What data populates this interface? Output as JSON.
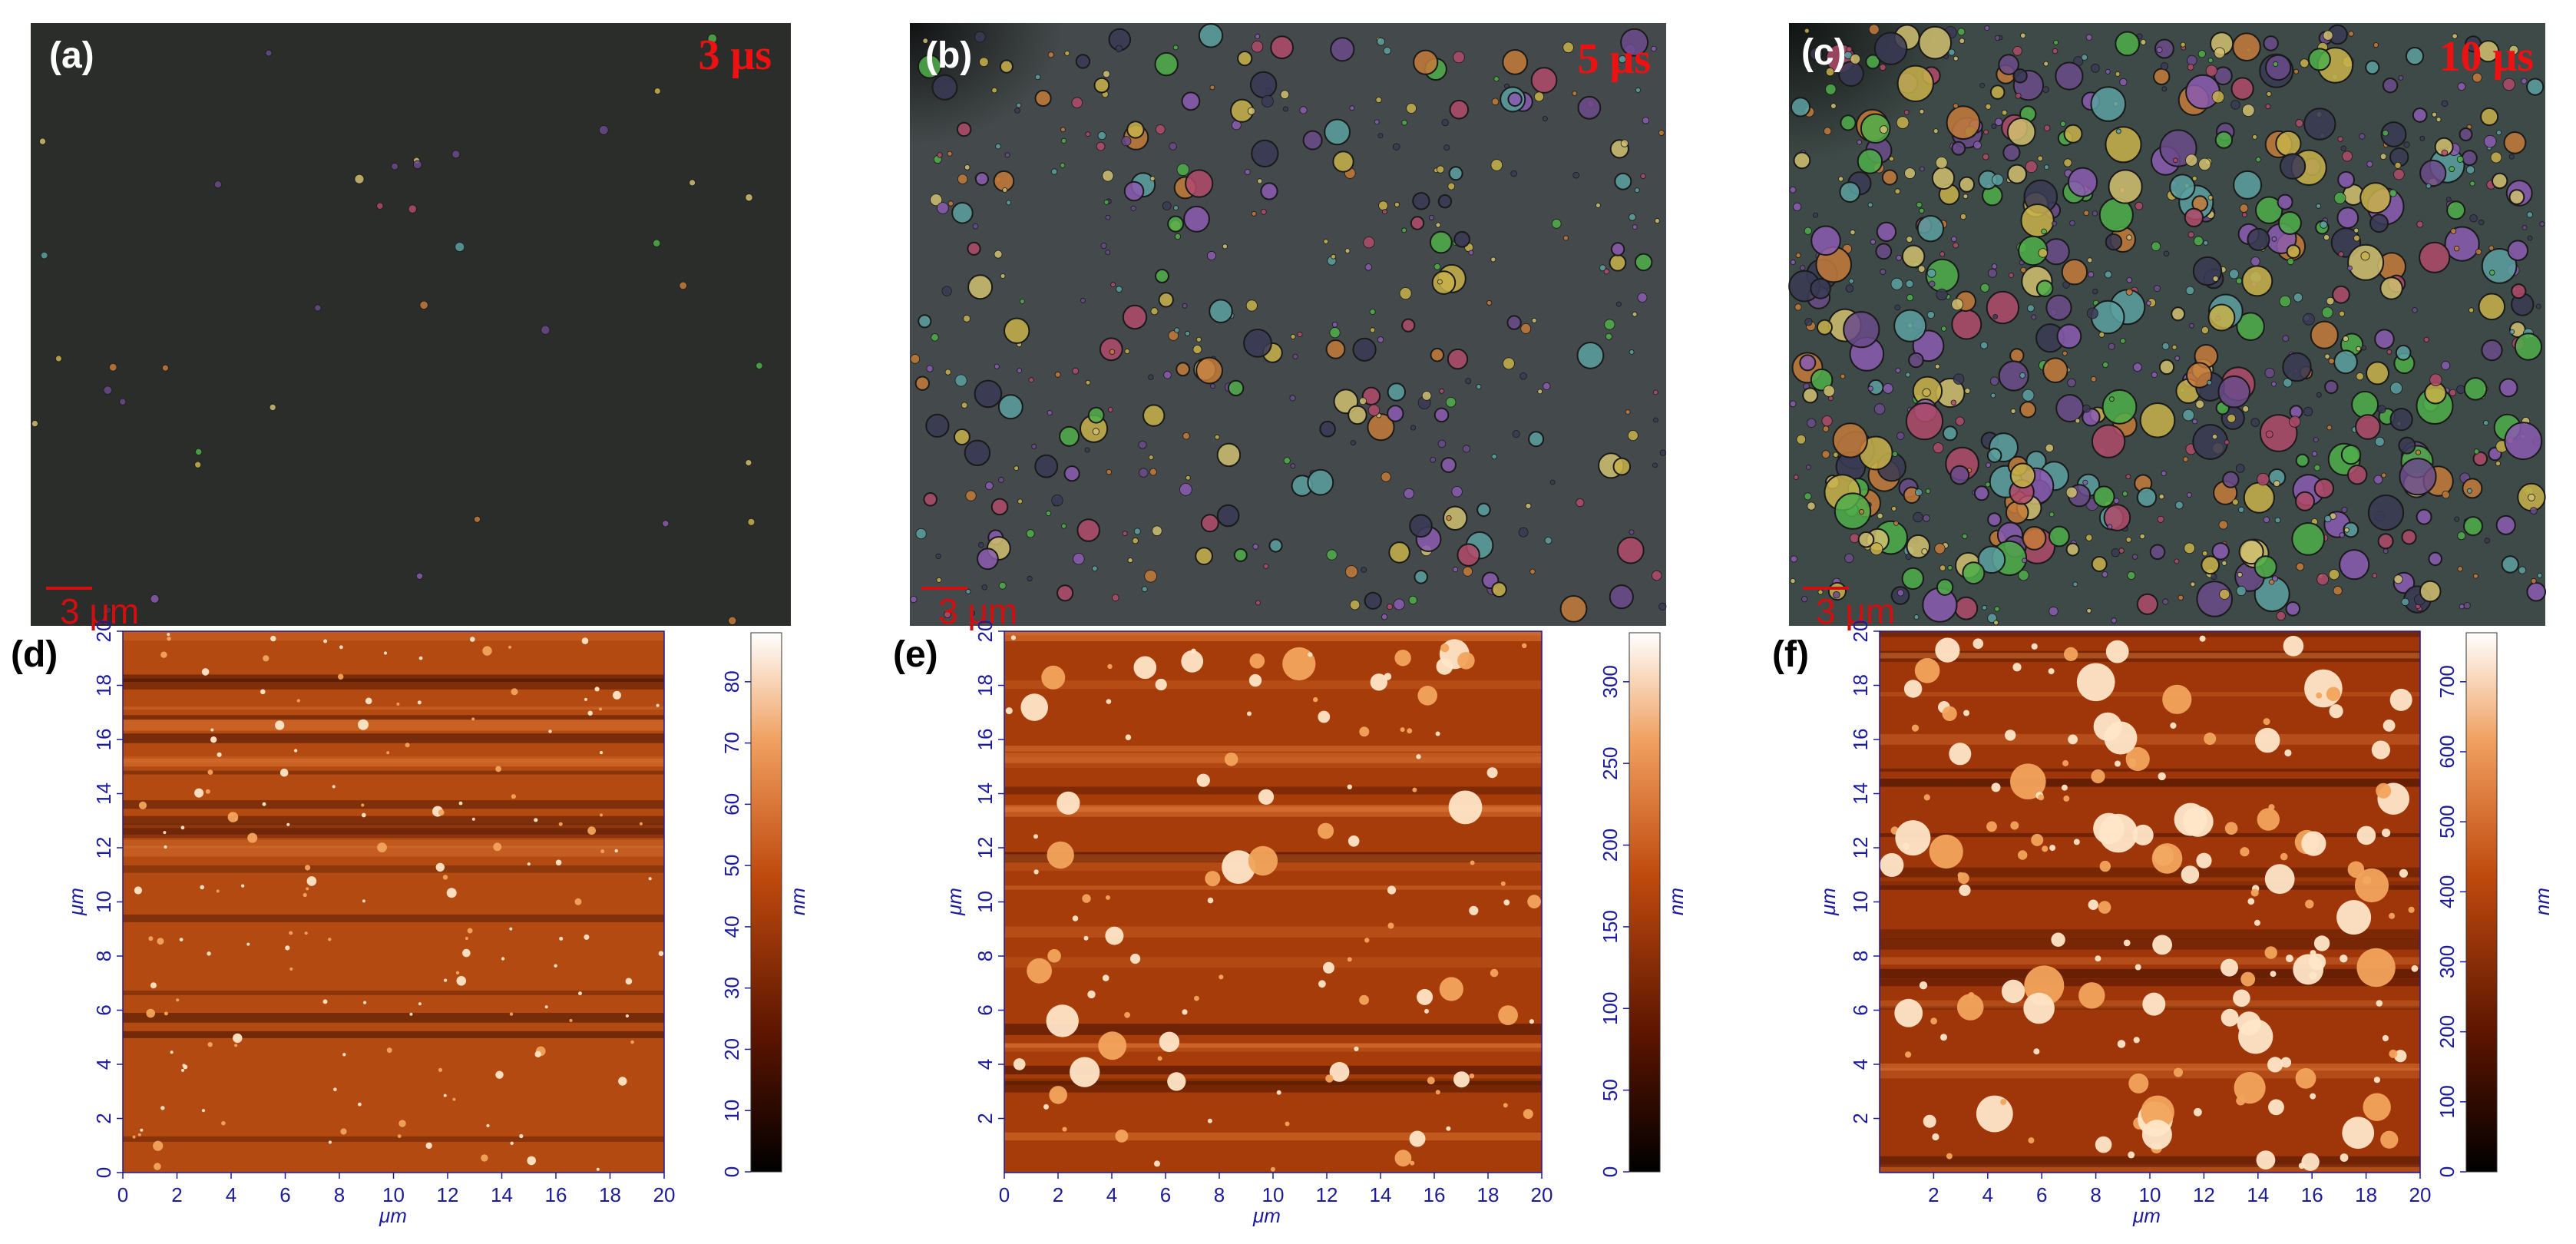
{
  "figure": {
    "panels_top": [
      {
        "id": "a",
        "label": "(a)",
        "time": "3 μs",
        "scale": "3 μm",
        "density": "sparse"
      },
      {
        "id": "b",
        "label": "(b)",
        "time": "5 μs",
        "scale": "3 μm",
        "density": "medium"
      },
      {
        "id": "c",
        "label": "(c)",
        "time": "10 μs",
        "scale": "3 μm",
        "density": "dense"
      }
    ],
    "panels_bottom": [
      {
        "id": "d",
        "label": "(d)",
        "xlabel": "μm",
        "ylabel": "μm",
        "zlabel": "nm",
        "x_ticks": [
          "0",
          "2",
          "4",
          "6",
          "8",
          "10",
          "12",
          "14",
          "16",
          "18",
          "20"
        ],
        "y_ticks": [
          "0",
          "2",
          "4",
          "6",
          "8",
          "10",
          "12",
          "14",
          "16",
          "18",
          "20"
        ],
        "colorbar_ticks": [
          "0",
          "10",
          "20",
          "30",
          "40",
          "50",
          "60",
          "70",
          "80"
        ]
      },
      {
        "id": "e",
        "label": "(e)",
        "xlabel": "μm",
        "ylabel": "μm",
        "zlabel": "nm",
        "x_ticks": [
          "0",
          "2",
          "4",
          "6",
          "8",
          "10",
          "12",
          "14",
          "16",
          "18",
          "20"
        ],
        "y_ticks": [
          "2",
          "4",
          "6",
          "8",
          "10",
          "12",
          "14",
          "16",
          "18",
          "20"
        ],
        "colorbar_ticks": [
          "0",
          "50",
          "100",
          "150",
          "200",
          "250",
          "300"
        ]
      },
      {
        "id": "f",
        "label": "(f)",
        "xlabel": "μm",
        "ylabel": "μm",
        "zlabel": "nm",
        "x_ticks": [
          "2",
          "4",
          "6",
          "8",
          "10",
          "12",
          "14",
          "16",
          "18",
          "20"
        ],
        "y_ticks": [
          "2",
          "4",
          "6",
          "8",
          "10",
          "12",
          "14",
          "16",
          "18",
          "20"
        ],
        "colorbar_ticks": [
          "0",
          "100",
          "200",
          "300",
          "400",
          "500",
          "600",
          "700"
        ]
      }
    ],
    "colors": {
      "text_blue": "#1c1c9a",
      "time_red": "#ee1111",
      "afm_low": "#000000",
      "afm_mid": "#b83a06",
      "afm_high": "#ffffff"
    }
  }
}
